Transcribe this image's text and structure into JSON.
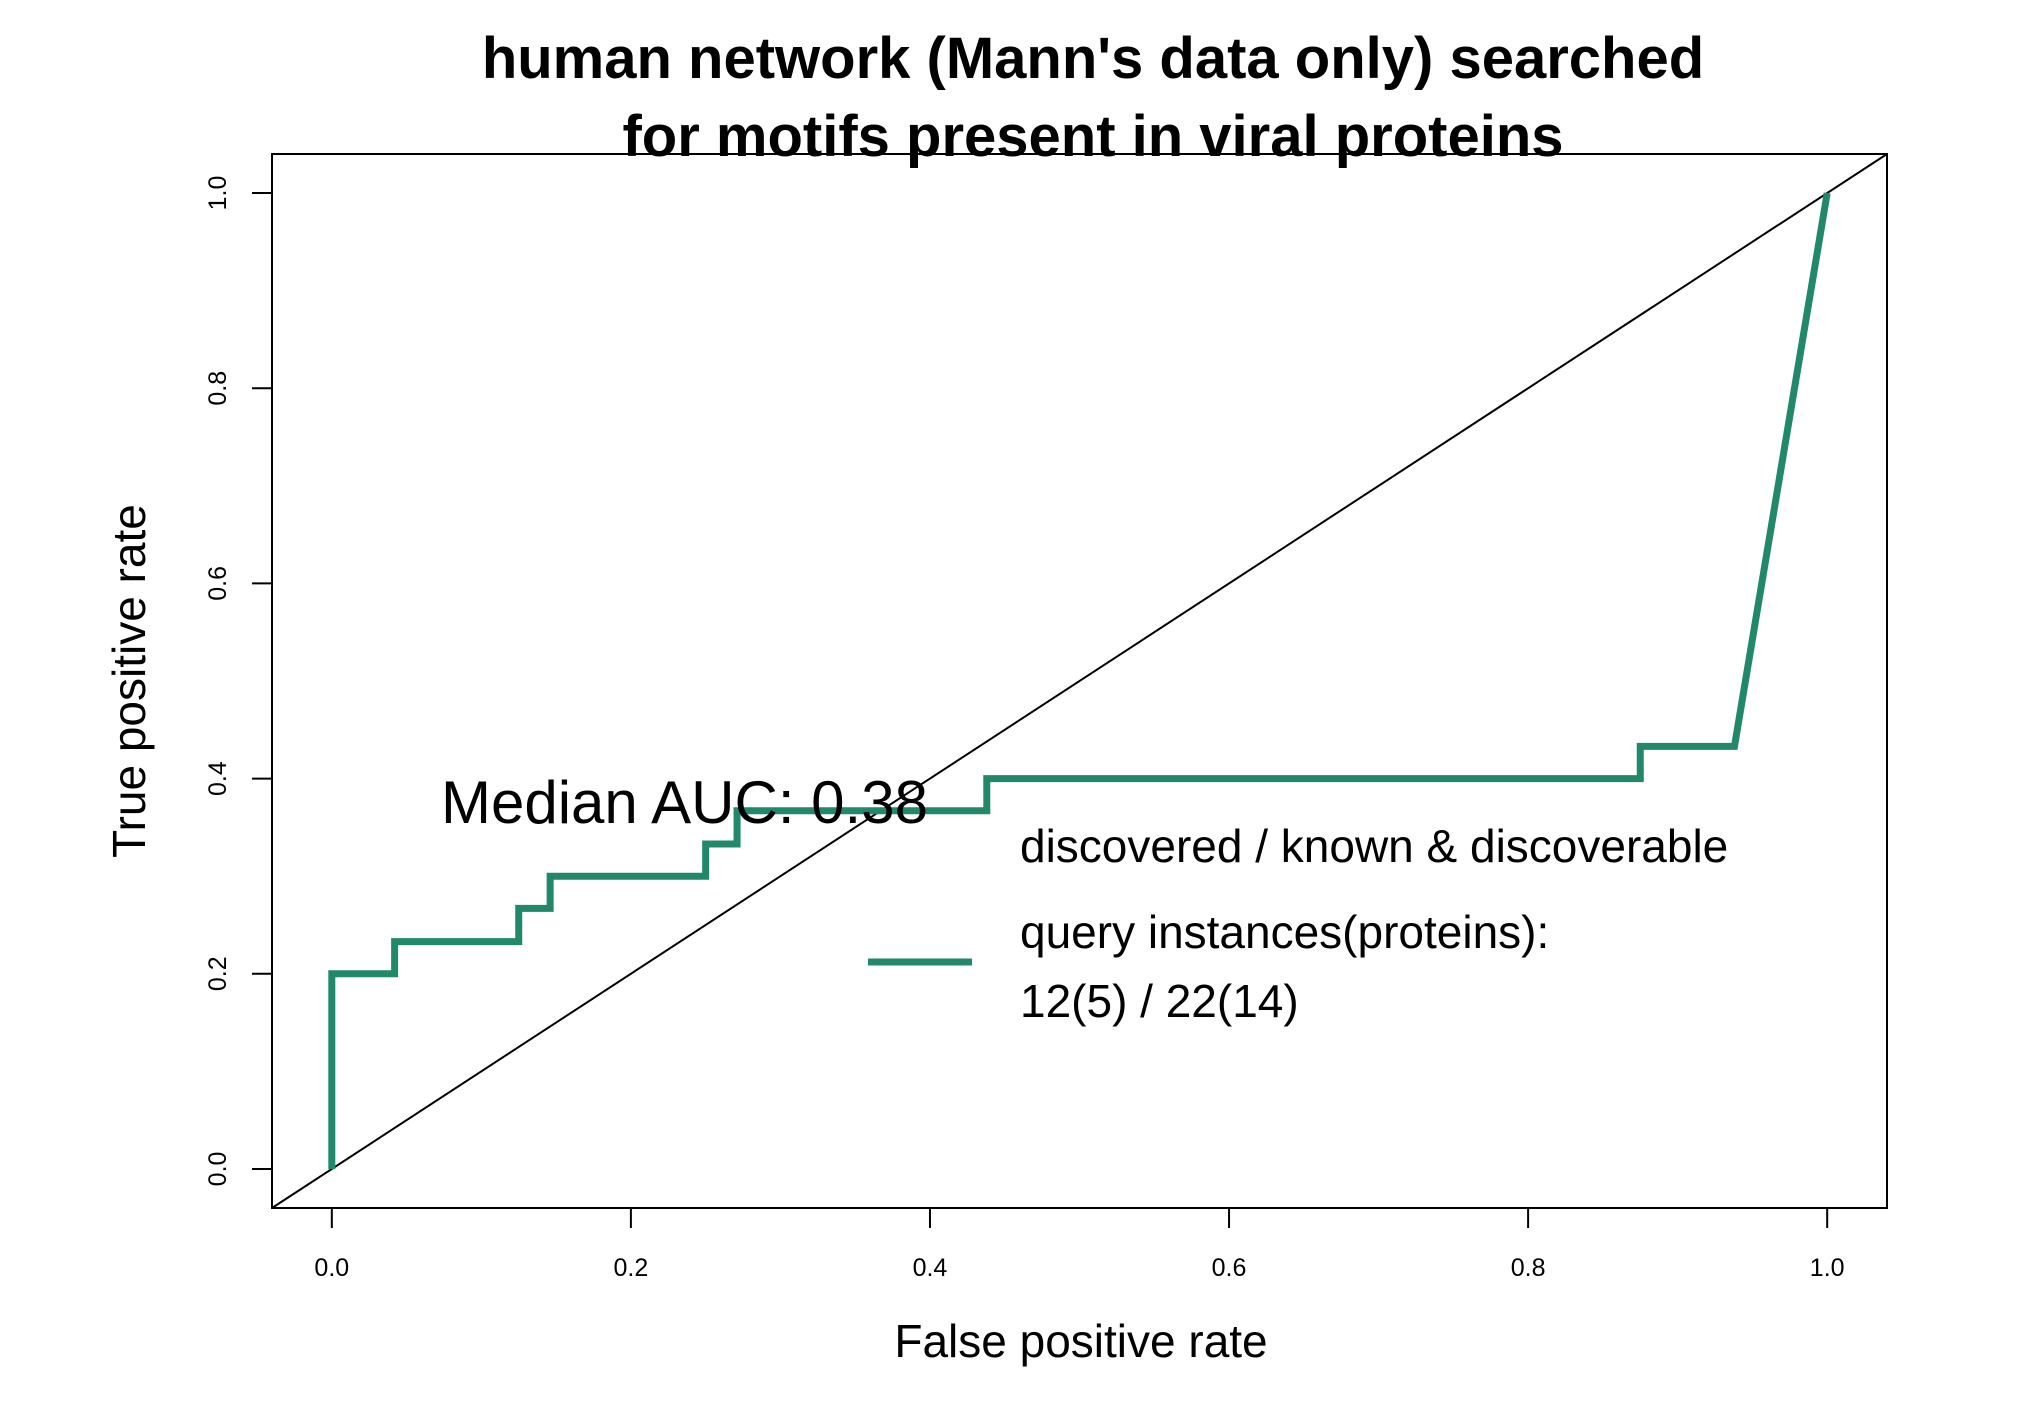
{
  "chart_data": {
    "type": "line",
    "title_lines": [
      "human network (Mann's data only) searched",
      "for motifs present in viral proteins"
    ],
    "xlabel": "False positive rate",
    "ylabel": "True positive rate",
    "xlim": [
      -0.04,
      1.04
    ],
    "ylim": [
      -0.04,
      1.04
    ],
    "x_ticks": [
      0.0,
      0.2,
      0.4,
      0.6,
      0.8,
      1.0
    ],
    "y_ticks": [
      0.0,
      0.2,
      0.4,
      0.6,
      0.8,
      1.0
    ],
    "x_tick_labels": [
      "0.0",
      "0.2",
      "0.4",
      "0.6",
      "0.8",
      "1.0"
    ],
    "y_tick_labels": [
      "0.0",
      "0.2",
      "0.4",
      "0.6",
      "0.8",
      "1.0"
    ],
    "grid": false,
    "reference_line": {
      "from": [
        -0.04,
        -0.04
      ],
      "to": [
        1.04,
        1.04
      ],
      "color": "#000000"
    },
    "annotation": "Median AUC: 0.38",
    "series": [
      {
        "color": "#21896a",
        "x": [
          0,
          0,
          0.042,
          0.042,
          0.125,
          0.125,
          0.146,
          0.146,
          0.25,
          0.25,
          0.271,
          0.271,
          0.438,
          0.438,
          0.875,
          0.875,
          0.938,
          1.0
        ],
        "y": [
          0,
          0.2,
          0.2,
          0.233,
          0.233,
          0.267,
          0.267,
          0.3,
          0.3,
          0.333,
          0.333,
          0.367,
          0.367,
          0.4,
          0.4,
          0.433,
          0.433,
          1.0
        ]
      }
    ],
    "legend": {
      "position": "bottom-right",
      "header": "discovered / known & discoverable",
      "entry_lines": [
        "query instances(proteins):",
        "12(5) / 22(14)"
      ],
      "color": "#21896a"
    }
  }
}
